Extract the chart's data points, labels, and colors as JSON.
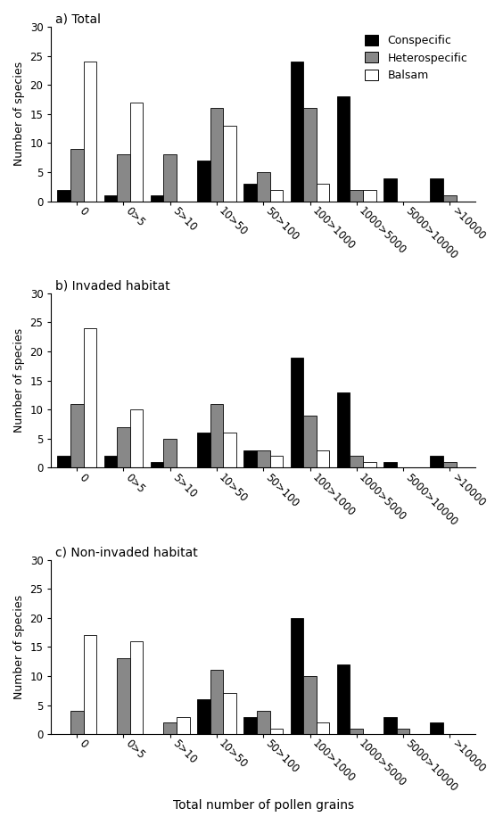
{
  "categories": [
    "0",
    "0>5",
    "5>10",
    "10>50",
    "50>100",
    "100>1000",
    "1000>5000",
    "5000>10000",
    ">10000"
  ],
  "panels": [
    {
      "title": "a) Total",
      "conspecific": [
        2,
        1,
        1,
        7,
        3,
        24,
        18,
        4,
        4
      ],
      "heterospecific": [
        9,
        8,
        8,
        16,
        5,
        16,
        2,
        0,
        1
      ],
      "balsam": [
        24,
        17,
        0,
        13,
        2,
        3,
        2,
        0,
        0
      ]
    },
    {
      "title": "b) Invaded habitat",
      "conspecific": [
        2,
        2,
        1,
        6,
        3,
        19,
        13,
        1,
        2
      ],
      "heterospecific": [
        11,
        7,
        5,
        11,
        3,
        9,
        2,
        0,
        1
      ],
      "balsam": [
        24,
        10,
        0,
        6,
        2,
        3,
        1,
        0,
        0
      ]
    },
    {
      "title": "c) Non-invaded habitat",
      "conspecific": [
        0,
        0,
        0,
        6,
        3,
        20,
        12,
        3,
        2
      ],
      "heterospecific": [
        4,
        13,
        2,
        11,
        4,
        10,
        1,
        1,
        0
      ],
      "balsam": [
        17,
        16,
        3,
        7,
        1,
        2,
        0,
        0,
        0
      ]
    }
  ],
  "ylabel": "Number of species",
  "xlabel": "Total number of pollen grains",
  "ylim": [
    0,
    30
  ],
  "yticks": [
    0,
    5,
    10,
    15,
    20,
    25,
    30
  ],
  "colors": {
    "conspecific": "#000000",
    "heterospecific": "#888888",
    "balsam": "#ffffff"
  },
  "legend_labels": [
    "Conspecific",
    "Heterospecific",
    "Balsam"
  ],
  "bar_edgecolor": "#000000",
  "bar_width": 0.28,
  "background_color": "#ffffff"
}
